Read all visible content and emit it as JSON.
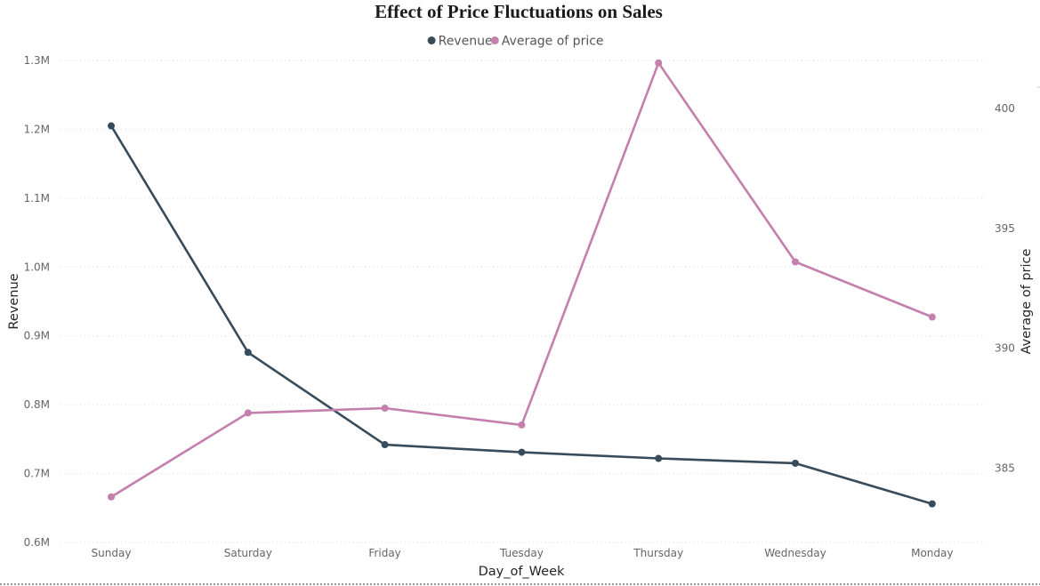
{
  "colors": {
    "revenue": "#374B5A",
    "price": "#C47FAC",
    "background": "#ffffff"
  },
  "chart_data": {
    "type": "line",
    "title": "Effect of Price Fluctuations on Sales",
    "xlabel": "Day_of_Week",
    "ylabel": "Revenue",
    "y2label": "Average of price",
    "categories": [
      "Sunday",
      "Saturday",
      "Friday",
      "Tuesday",
      "Thursday",
      "Wednesday",
      "Monday"
    ],
    "series": [
      {
        "name": "Revenue",
        "axis": "left",
        "color": "#374B5A",
        "values": [
          1205000,
          876000,
          742000,
          731000,
          722000,
          715000,
          656000
        ]
      },
      {
        "name": "Average of price",
        "axis": "right",
        "color": "#C47FAC",
        "values": [
          383.8,
          387.3,
          387.5,
          386.8,
          401.9,
          393.6,
          391.3
        ]
      }
    ],
    "ylim": [
      600000,
      1300000
    ],
    "yticks": [
      {
        "value": 600000,
        "label": "0.6M"
      },
      {
        "value": 700000,
        "label": "0.7M"
      },
      {
        "value": 800000,
        "label": "0.8M"
      },
      {
        "value": 900000,
        "label": "0.9M"
      },
      {
        "value": 1000000,
        "label": "1.0M"
      },
      {
        "value": 1100000,
        "label": "1.1M"
      },
      {
        "value": 1200000,
        "label": "1.2M"
      },
      {
        "value": 1300000,
        "label": "1.3M"
      }
    ],
    "y2lim": [
      381.9,
      402.0
    ],
    "y2ticks": [
      {
        "value": 385,
        "label": "385"
      },
      {
        "value": 390,
        "label": "390"
      },
      {
        "value": 395,
        "label": "395"
      },
      {
        "value": 400,
        "label": "400"
      }
    ],
    "legend": {
      "position": "top-center",
      "items": [
        {
          "label": "Revenue",
          "color": "#374B5A"
        },
        {
          "label": "Average of price",
          "color": "#C47FAC"
        }
      ]
    },
    "grid": true
  }
}
